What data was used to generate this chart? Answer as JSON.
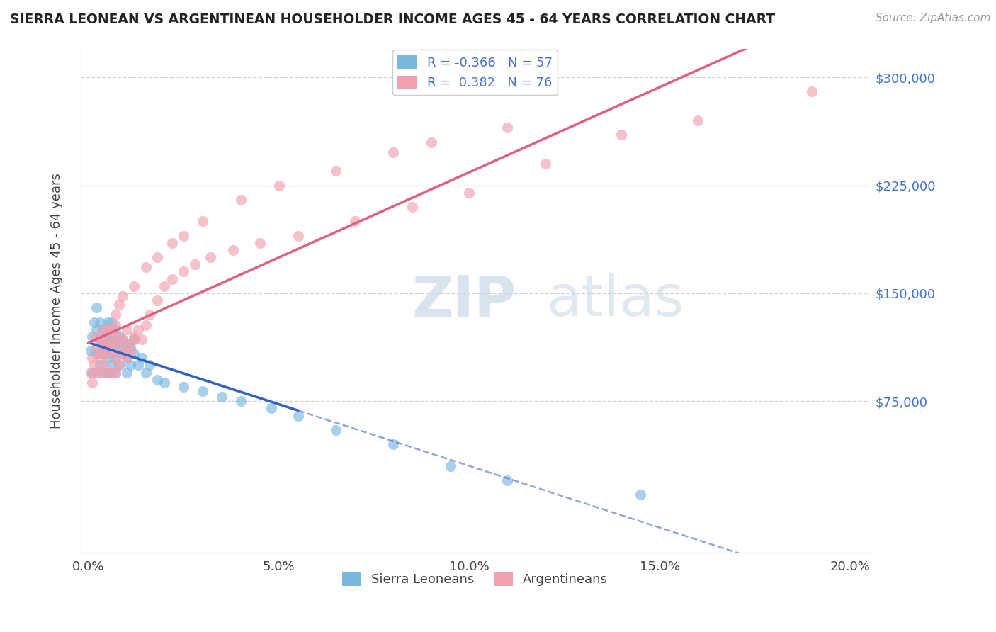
{
  "title": "SIERRA LEONEAN VS ARGENTINEAN HOUSEHOLDER INCOME AGES 45 - 64 YEARS CORRELATION CHART",
  "source": "Source: ZipAtlas.com",
  "ylabel": "Householder Income Ages 45 - 64 years",
  "xlabel_ticks": [
    "0.0%",
    "5.0%",
    "10.0%",
    "15.0%",
    "20.0%"
  ],
  "xlabel_values": [
    0.0,
    0.05,
    0.1,
    0.15,
    0.2
  ],
  "ytick_labels": [
    "$75,000",
    "$150,000",
    "$225,000",
    "$300,000"
  ],
  "ytick_values": [
    75000,
    150000,
    225000,
    300000
  ],
  "xlim": [
    -0.002,
    0.205
  ],
  "ylim": [
    -30000,
    320000
  ],
  "sierra_color": "#7ab8e0",
  "argentina_color": "#f0a0b0",
  "sierra_line_color": "#3060c0",
  "argentina_line_color": "#e06080",
  "background_color": "#ffffff",
  "grid_color": "#c8c8c8",
  "sierra_R": -0.366,
  "sierra_N": 57,
  "argentina_R": 0.382,
  "argentina_N": 76,
  "sierra_x": [
    0.0005,
    0.001,
    0.001,
    0.0015,
    0.002,
    0.002,
    0.002,
    0.003,
    0.003,
    0.003,
    0.003,
    0.004,
    0.004,
    0.004,
    0.004,
    0.005,
    0.005,
    0.005,
    0.005,
    0.005,
    0.006,
    0.006,
    0.006,
    0.006,
    0.007,
    0.007,
    0.007,
    0.007,
    0.008,
    0.008,
    0.008,
    0.009,
    0.009,
    0.01,
    0.01,
    0.01,
    0.011,
    0.011,
    0.012,
    0.012,
    0.013,
    0.014,
    0.015,
    0.016,
    0.018,
    0.02,
    0.025,
    0.03,
    0.035,
    0.04,
    0.048,
    0.055,
    0.065,
    0.08,
    0.095,
    0.11,
    0.145
  ],
  "sierra_y": [
    110000,
    95000,
    120000,
    130000,
    108000,
    125000,
    140000,
    115000,
    100000,
    130000,
    118000,
    112000,
    95000,
    125000,
    108000,
    105000,
    118000,
    95000,
    130000,
    112000,
    100000,
    118000,
    108000,
    130000,
    105000,
    115000,
    95000,
    125000,
    112000,
    100000,
    120000,
    108000,
    118000,
    105000,
    115000,
    95000,
    112000,
    100000,
    108000,
    118000,
    100000,
    105000,
    95000,
    100000,
    90000,
    88000,
    85000,
    82000,
    78000,
    75000,
    70000,
    65000,
    55000,
    45000,
    30000,
    20000,
    10000
  ],
  "argentina_x": [
    0.0005,
    0.001,
    0.001,
    0.0015,
    0.002,
    0.002,
    0.002,
    0.003,
    0.003,
    0.003,
    0.003,
    0.004,
    0.004,
    0.004,
    0.004,
    0.005,
    0.005,
    0.005,
    0.005,
    0.006,
    0.006,
    0.006,
    0.006,
    0.007,
    0.007,
    0.007,
    0.007,
    0.008,
    0.008,
    0.008,
    0.009,
    0.009,
    0.01,
    0.01,
    0.01,
    0.011,
    0.011,
    0.012,
    0.012,
    0.013,
    0.014,
    0.015,
    0.016,
    0.018,
    0.02,
    0.022,
    0.025,
    0.028,
    0.032,
    0.038,
    0.045,
    0.055,
    0.07,
    0.085,
    0.1,
    0.12,
    0.14,
    0.16,
    0.19,
    0.005,
    0.006,
    0.007,
    0.008,
    0.009,
    0.012,
    0.015,
    0.018,
    0.022,
    0.025,
    0.03,
    0.04,
    0.05,
    0.065,
    0.08,
    0.09,
    0.11
  ],
  "argentina_y": [
    95000,
    88000,
    105000,
    100000,
    112000,
    95000,
    120000,
    108000,
    118000,
    95000,
    105000,
    115000,
    100000,
    125000,
    108000,
    112000,
    95000,
    125000,
    118000,
    108000,
    115000,
    95000,
    125000,
    105000,
    118000,
    95000,
    128000,
    112000,
    100000,
    120000,
    108000,
    118000,
    105000,
    115000,
    125000,
    112000,
    108000,
    120000,
    118000,
    125000,
    118000,
    128000,
    135000,
    145000,
    155000,
    160000,
    165000,
    170000,
    175000,
    180000,
    185000,
    190000,
    200000,
    210000,
    220000,
    240000,
    260000,
    270000,
    290000,
    115000,
    125000,
    135000,
    142000,
    148000,
    155000,
    168000,
    175000,
    185000,
    190000,
    200000,
    215000,
    225000,
    235000,
    248000,
    255000,
    265000
  ]
}
